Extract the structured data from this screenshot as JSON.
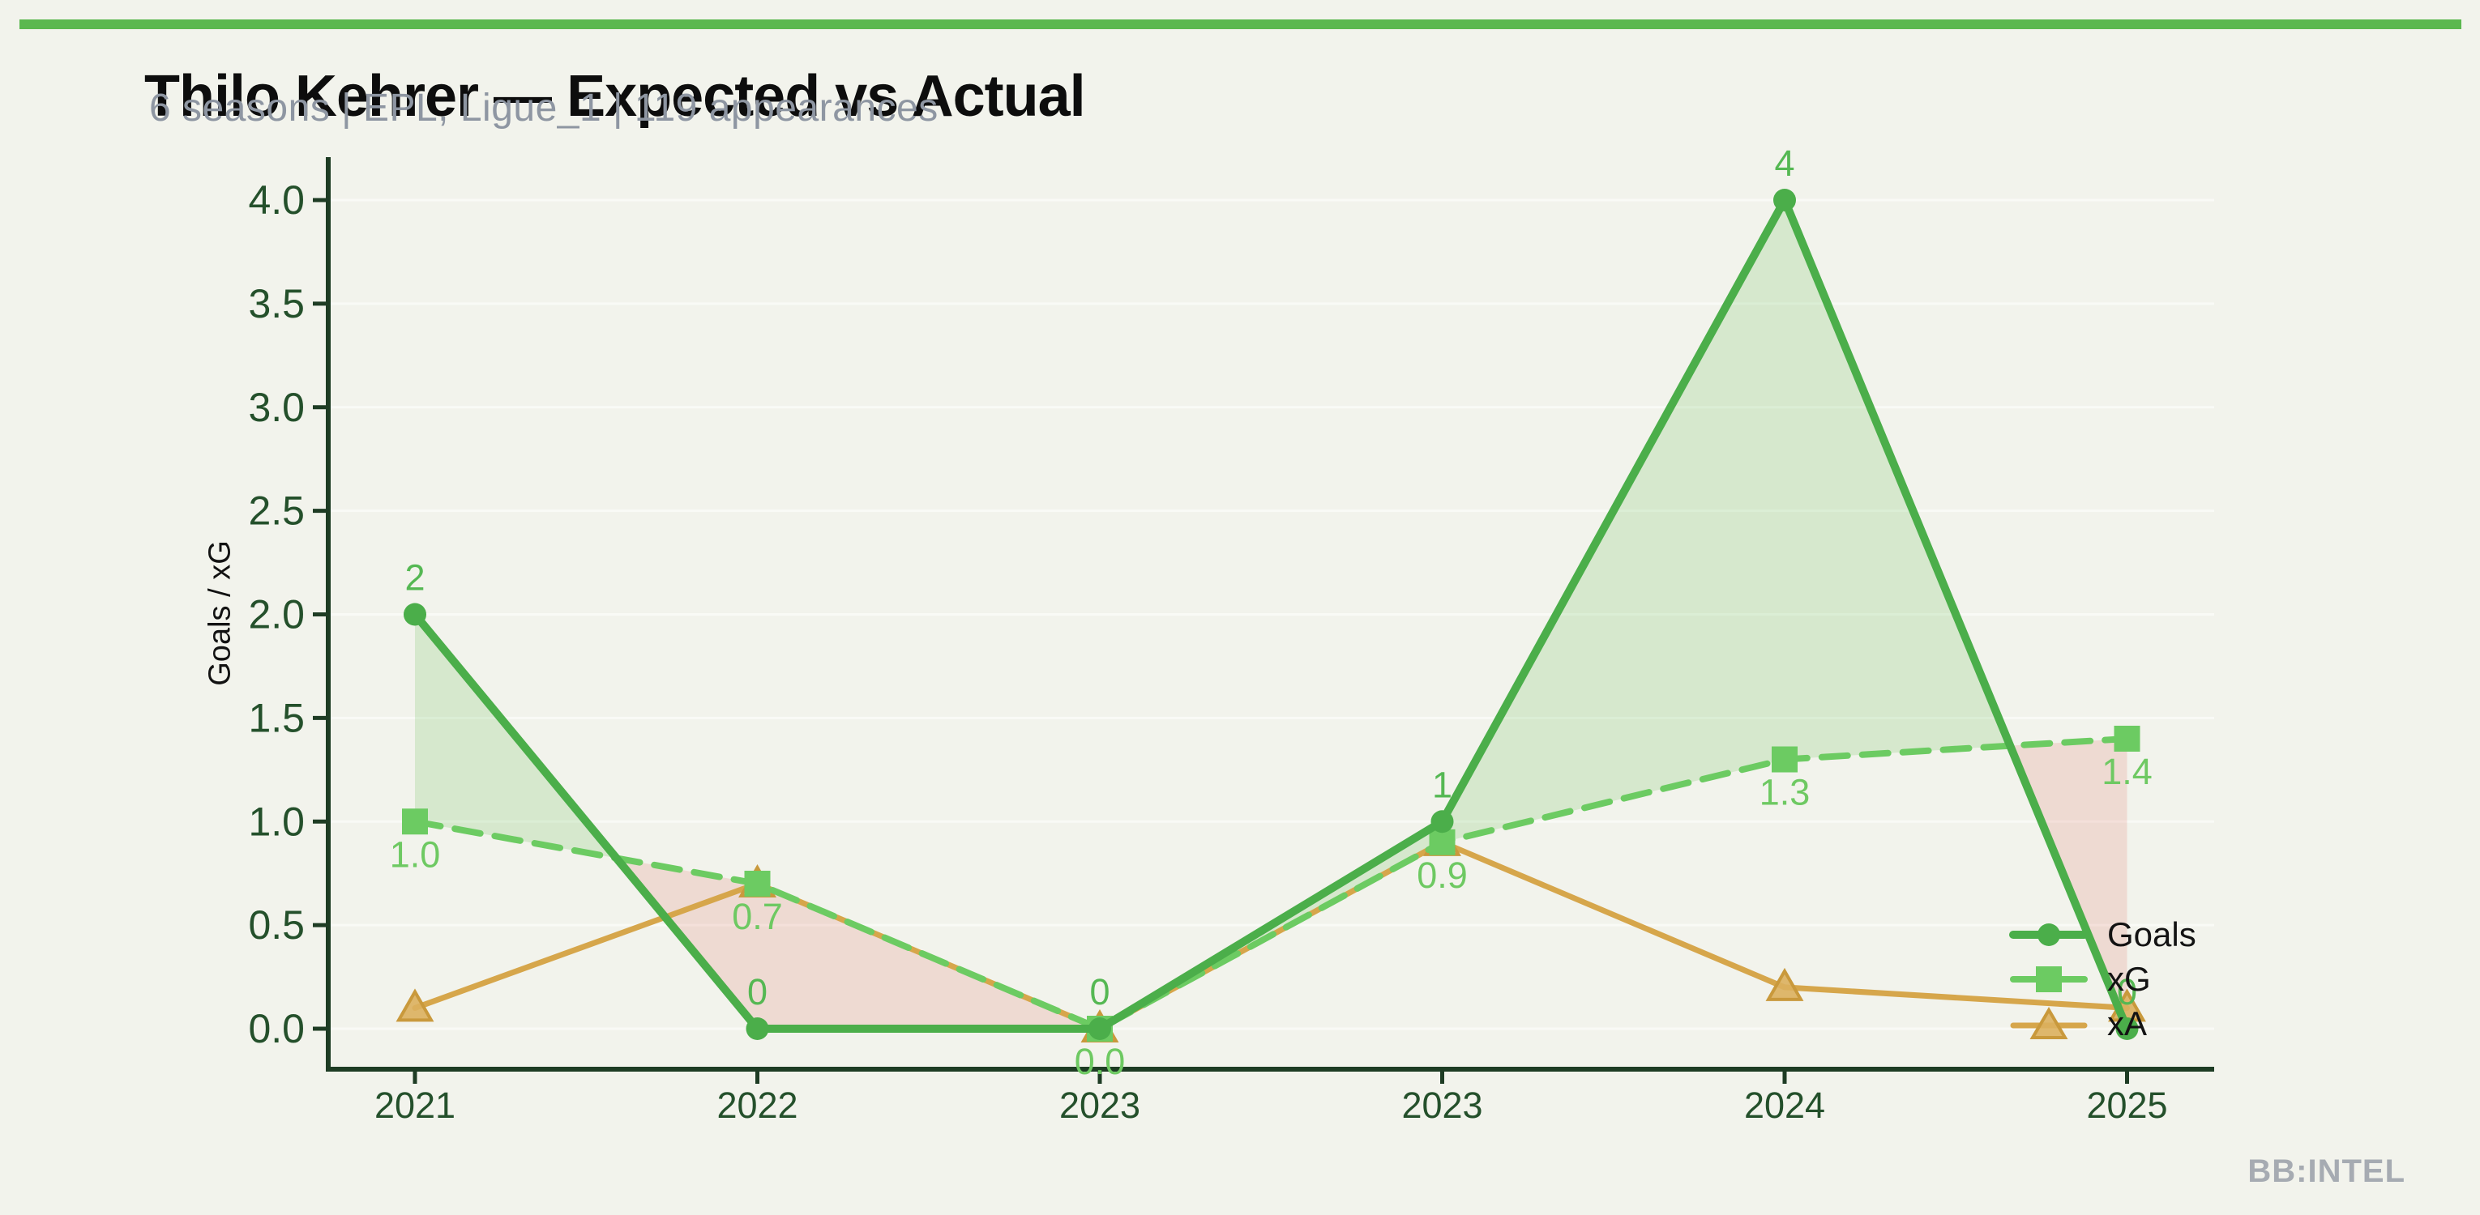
{
  "header": {
    "accent_bar_color": "#5bb84f",
    "title": "Thilo Kehrer — Expected vs Actual",
    "subtitle": "6 seasons | EPL, Ligue_1 | 119 appearances"
  },
  "footer": {
    "watermark": "BB:INTEL"
  },
  "chart_data": {
    "type": "line",
    "title": "Thilo Kehrer — Expected vs Actual",
    "subtitle": "6 seasons | EPL, Ligue_1 | 119 appearances",
    "categories": [
      "2021",
      "2022",
      "2023",
      "2023",
      "2024",
      "2025"
    ],
    "xlabel": "",
    "ylabel": "Goals / xG",
    "ylim": [
      0,
      4.0
    ],
    "ytick_step": 0.5,
    "grid": true,
    "legend_position": "lower right",
    "axis_color": "#1e3c24",
    "tick_label_color": "#24502b",
    "series": [
      {
        "name": "Goals",
        "marker": "circle",
        "dash": "solid",
        "color": "#4bae4a",
        "label_color": "#55b853",
        "values": [
          2,
          0,
          0,
          1,
          4,
          0
        ],
        "point_labels": [
          "2",
          "0",
          "0",
          "1",
          "4",
          "0"
        ],
        "label_side": "above"
      },
      {
        "name": "xG",
        "marker": "square",
        "dash": "dashed",
        "color": "#6ccb62",
        "label_color": "#6ec962",
        "values": [
          1.0,
          0.7,
          0.0,
          0.9,
          1.3,
          1.4
        ],
        "point_labels": [
          "1.0",
          "0.7",
          "0.0",
          "0.9",
          "1.3",
          "1.4"
        ],
        "label_side": "below"
      },
      {
        "name": "xA",
        "marker": "triangle",
        "dash": "solid",
        "color": "#d6a64b",
        "marker_fill": "rgba(219,176,94,0.9)",
        "marker_edge": "#c9993c",
        "values": [
          0.1,
          0.7,
          0.0,
          0.9,
          0.2,
          0.1
        ],
        "point_labels": [],
        "label_side": "none"
      }
    ],
    "fill_between": {
      "series_a": "Goals",
      "series_b": "xG",
      "above_color": "rgba(116,198,96,0.22)",
      "below_color": "rgba(226,120,108,0.20)"
    }
  }
}
